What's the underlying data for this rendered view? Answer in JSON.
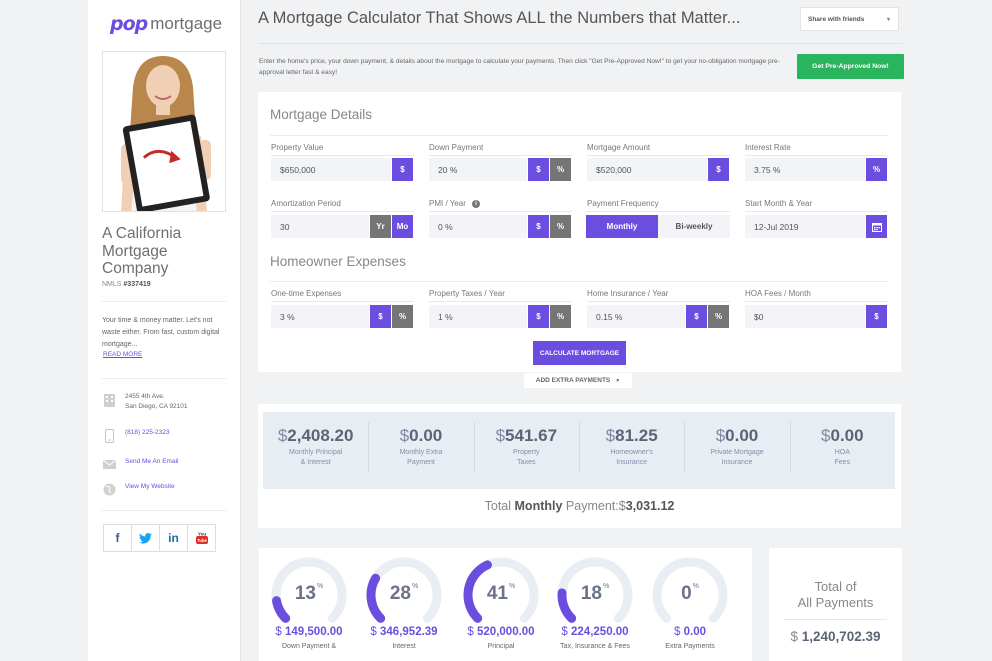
{
  "brand": {
    "logo_mark": "pop",
    "logo_word": "mortgage",
    "accent": "#6b4ee0",
    "green": "#2bb45e"
  },
  "sidebar": {
    "company": "A California Mortgage Company",
    "nmls_label": "NMLS",
    "nmls_number": "#337419",
    "tagline": "Your time & money matter. Let's not waste either. From fast, custom digital mortgage...",
    "read_more": "READ MORE",
    "address_line1": "2455 4th Ave.",
    "address_line2": "San Diego, CA 92101",
    "phone": "(818) 225-2323",
    "email_link": "Send Me An Email",
    "website_link": "View My Website",
    "socials": [
      {
        "label": "f",
        "icon": "facebook-icon",
        "color": "#3b5998"
      },
      {
        "label": "t",
        "icon": "twitter-icon",
        "color": "#1da1f2"
      },
      {
        "label": "in",
        "icon": "linkedin-icon",
        "color": "#0e76a8"
      },
      {
        "label": "You",
        "icon": "youtube-icon",
        "color": "#e52d27"
      }
    ]
  },
  "header": {
    "title": "A Mortgage Calculator That Shows ALL the Numbers that Matter...",
    "share_label": "Share with friends",
    "intro": "Enter the home's price, your down payment, & details about the mortgage to calculate your payments. Then click \"Get Pre-Approved Now!\" to get your no-obligation mortgage pre-approval letter fast & easy!",
    "preapproved_label": "Get Pre-Approved Now!"
  },
  "mortgage_details": {
    "title": "Mortgage Details",
    "property_value": {
      "label": "Property Value",
      "currency": "$",
      "value": "650,000",
      "btn": "$"
    },
    "down_payment": {
      "label": "Down Payment",
      "value": "20 %",
      "btn1": "$",
      "btn2": "%"
    },
    "mortgage_amount": {
      "label": "Mortgage Amount",
      "currency": "$",
      "value": "520,000",
      "btn": "$"
    },
    "interest_rate": {
      "label": "Interest Rate",
      "value": "3.75 %",
      "btn": "%"
    },
    "amortization": {
      "label": "Amortization Period",
      "value": "30",
      "btn1": "Yr",
      "btn2": "Mo"
    },
    "pmi": {
      "label": "PMI / Year",
      "value": "0 %",
      "btn1": "$",
      "btn2": "%",
      "info": "i"
    },
    "frequency": {
      "label": "Payment Frequency",
      "opt1": "Monthly",
      "opt2": "Bi-weekly"
    },
    "start": {
      "label": "Start Month & Year",
      "value": "12-Jul 2019"
    }
  },
  "homeowner_expenses": {
    "title": "Homeowner Expenses",
    "one_time": {
      "label": "One-time Expenses",
      "value": "3 %",
      "btn1": "$",
      "btn2": "%"
    },
    "property_taxes": {
      "label": "Property Taxes / Year",
      "value": "1 %",
      "btn1": "$",
      "btn2": "%"
    },
    "home_insurance": {
      "label": "Home Insurance / Year",
      "value": "0.15 %",
      "btn1": "$",
      "btn2": "%"
    },
    "hoa": {
      "label": "HOA Fees / Month",
      "currency": "$",
      "value": "0",
      "btn": "$"
    }
  },
  "calculate_label": "CALCULATE MORTGAGE",
  "extra_payments_label": "ADD EXTRA PAYMENTS",
  "summary": [
    {
      "value": "2,408.20",
      "label1": "Monthly Principal",
      "label2": "& Interest"
    },
    {
      "value": "0.00",
      "label1": "Monthly Extra",
      "label2": "Payment"
    },
    {
      "value": "541.67",
      "label1": "Property",
      "label2": "Taxes"
    },
    {
      "value": "81.25",
      "label1": "Homeowner's",
      "label2": "Insurance"
    },
    {
      "value": "0.00",
      "label1": "Private Mortgage",
      "label2": "Insurance"
    },
    {
      "value": "0.00",
      "label1": "HOA",
      "label2": "Fees"
    }
  ],
  "currency_symbol": "$",
  "total": {
    "prefix": "Total",
    "bold": "Monthly",
    "suffix": "Payment:",
    "currency": "$",
    "value": "3,031.12"
  },
  "breakdown": [
    {
      "pct": "13",
      "amount": "149,500.00",
      "label": "Down Payment &",
      "fraction": 0.13
    },
    {
      "pct": "28",
      "amount": "346,952.39",
      "label": "Interest",
      "fraction": 0.28
    },
    {
      "pct": "41",
      "amount": "520,000.00",
      "label": "Principal",
      "fraction": 0.41
    },
    {
      "pct": "18",
      "amount": "224,250.00",
      "label": "Tax, Insurance & Fees",
      "fraction": 0.18
    },
    {
      "pct": "0",
      "amount": "0.00",
      "label": "Extra Payments",
      "fraction": 0
    }
  ],
  "percent_sign": "%",
  "all_payments": {
    "title1": "Total of",
    "title2": "All Payments",
    "currency": "$",
    "value": "1,240,702.39"
  }
}
